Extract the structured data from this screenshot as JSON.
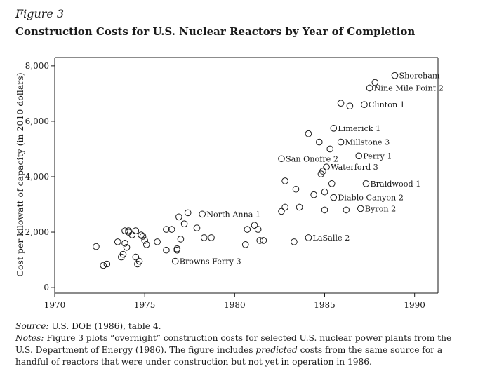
{
  "figure": {
    "label": "Figure 3",
    "title": "Construction Costs for U.S. Nuclear Reactors by Year of Completion"
  },
  "notes": {
    "source_label": "Source:",
    "source_text": " U.S. DOE (1986), table 4.",
    "notes_label": "Notes:",
    "notes_text_1": " Figure 3 plots “overnight” construction costs for selected U.S. nuclear power plants from the U.S. Department of Energy (1986). The figure includes ",
    "notes_emph": "predicted",
    "notes_text_2": " costs from the same source for a handful of reactors that were under construction but not yet in operation in 1986."
  },
  "chart_data": {
    "type": "scatter",
    "title": "Construction Costs for U.S. Nuclear Reactors by Year of Completion",
    "xlabel": "",
    "ylabel": "Cost per kilowatt of capacity (in 2010 dollars)",
    "xlim": [
      1970,
      1991.3
    ],
    "ylim": [
      -200,
      8300
    ],
    "xticks": [
      1970,
      1975,
      1980,
      1985,
      1990
    ],
    "xtick_labels": [
      "1970",
      "1975",
      "1980",
      "1985",
      "1990"
    ],
    "yticks": [
      0,
      2000,
      4000,
      6000,
      8000
    ],
    "ytick_labels": [
      "0",
      "2,000",
      "4,000",
      "6,000",
      "8,000"
    ],
    "grid": false,
    "points": [
      {
        "x": 1972.3,
        "y": 1480
      },
      {
        "x": 1972.7,
        "y": 800
      },
      {
        "x": 1972.9,
        "y": 850
      },
      {
        "x": 1973.5,
        "y": 1650
      },
      {
        "x": 1973.7,
        "y": 1100
      },
      {
        "x": 1973.8,
        "y": 1200
      },
      {
        "x": 1973.9,
        "y": 2050
      },
      {
        "x": 1973.9,
        "y": 1600
      },
      {
        "x": 1974.0,
        "y": 1450
      },
      {
        "x": 1974.1,
        "y": 2000
      },
      {
        "x": 1974.1,
        "y": 2050
      },
      {
        "x": 1974.3,
        "y": 1900
      },
      {
        "x": 1974.5,
        "y": 1100
      },
      {
        "x": 1974.5,
        "y": 2050
      },
      {
        "x": 1974.6,
        "y": 850
      },
      {
        "x": 1974.7,
        "y": 950
      },
      {
        "x": 1974.8,
        "y": 1900
      },
      {
        "x": 1974.9,
        "y": 1850
      },
      {
        "x": 1975.0,
        "y": 1700
      },
      {
        "x": 1975.1,
        "y": 1550
      },
      {
        "x": 1975.7,
        "y": 1650
      },
      {
        "x": 1976.2,
        "y": 1350
      },
      {
        "x": 1976.2,
        "y": 2100
      },
      {
        "x": 1976.5,
        "y": 2100
      },
      {
        "x": 1976.8,
        "y": 1350
      },
      {
        "x": 1976.8,
        "y": 1400
      },
      {
        "x": 1976.9,
        "y": 2550
      },
      {
        "x": 1977.0,
        "y": 1750
      },
      {
        "x": 1977.2,
        "y": 2300
      },
      {
        "x": 1977.4,
        "y": 2700
      },
      {
        "x": 1977.9,
        "y": 2150
      },
      {
        "x": 1978.3,
        "y": 1800
      },
      {
        "x": 1978.7,
        "y": 1800
      },
      {
        "x": 1980.6,
        "y": 1550
      },
      {
        "x": 1980.7,
        "y": 2100
      },
      {
        "x": 1981.1,
        "y": 2250
      },
      {
        "x": 1981.3,
        "y": 2100
      },
      {
        "x": 1981.4,
        "y": 1700
      },
      {
        "x": 1981.6,
        "y": 1700
      },
      {
        "x": 1982.6,
        "y": 2750
      },
      {
        "x": 1982.8,
        "y": 2900
      },
      {
        "x": 1982.8,
        "y": 3850
      },
      {
        "x": 1983.3,
        "y": 1650
      },
      {
        "x": 1983.4,
        "y": 3550
      },
      {
        "x": 1983.6,
        "y": 2900
      },
      {
        "x": 1984.1,
        "y": 5550
      },
      {
        "x": 1984.4,
        "y": 3350
      },
      {
        "x": 1984.7,
        "y": 5250
      },
      {
        "x": 1984.8,
        "y": 4100
      },
      {
        "x": 1984.9,
        "y": 4200
      },
      {
        "x": 1985.0,
        "y": 2800
      },
      {
        "x": 1985.0,
        "y": 3450
      },
      {
        "x": 1985.3,
        "y": 5000
      },
      {
        "x": 1985.4,
        "y": 3750
      },
      {
        "x": 1985.9,
        "y": 6650
      },
      {
        "x": 1986.2,
        "y": 2800
      },
      {
        "x": 1986.4,
        "y": 6550
      },
      {
        "x": 1987.8,
        "y": 7400
      }
    ],
    "labeled_points": [
      {
        "x": 1984.1,
        "y": 1800,
        "label": "LaSalle 2"
      },
      {
        "x": 1976.7,
        "y": 950,
        "label": "Browns Ferry 3"
      },
      {
        "x": 1978.2,
        "y": 2650,
        "label": "North Anna 1"
      },
      {
        "x": 1982.6,
        "y": 4650,
        "label": "San Onofre 2"
      },
      {
        "x": 1985.5,
        "y": 5750,
        "label": "Limerick 1"
      },
      {
        "x": 1985.9,
        "y": 5250,
        "label": "Millstone 3"
      },
      {
        "x": 1986.9,
        "y": 4750,
        "label": "Perry 1"
      },
      {
        "x": 1985.1,
        "y": 4350,
        "label": "Waterford 3"
      },
      {
        "x": 1987.3,
        "y": 3750,
        "label": "Braidwood 1"
      },
      {
        "x": 1985.5,
        "y": 3250,
        "label": "Diablo Canyon 2"
      },
      {
        "x": 1987.0,
        "y": 2850,
        "label": "Byron 2"
      },
      {
        "x": 1987.2,
        "y": 6600,
        "label": "Clinton 1"
      },
      {
        "x": 1987.5,
        "y": 7200,
        "label": "Nine Mile Point 2"
      },
      {
        "x": 1988.9,
        "y": 7650,
        "label": "Shoreham"
      }
    ]
  }
}
